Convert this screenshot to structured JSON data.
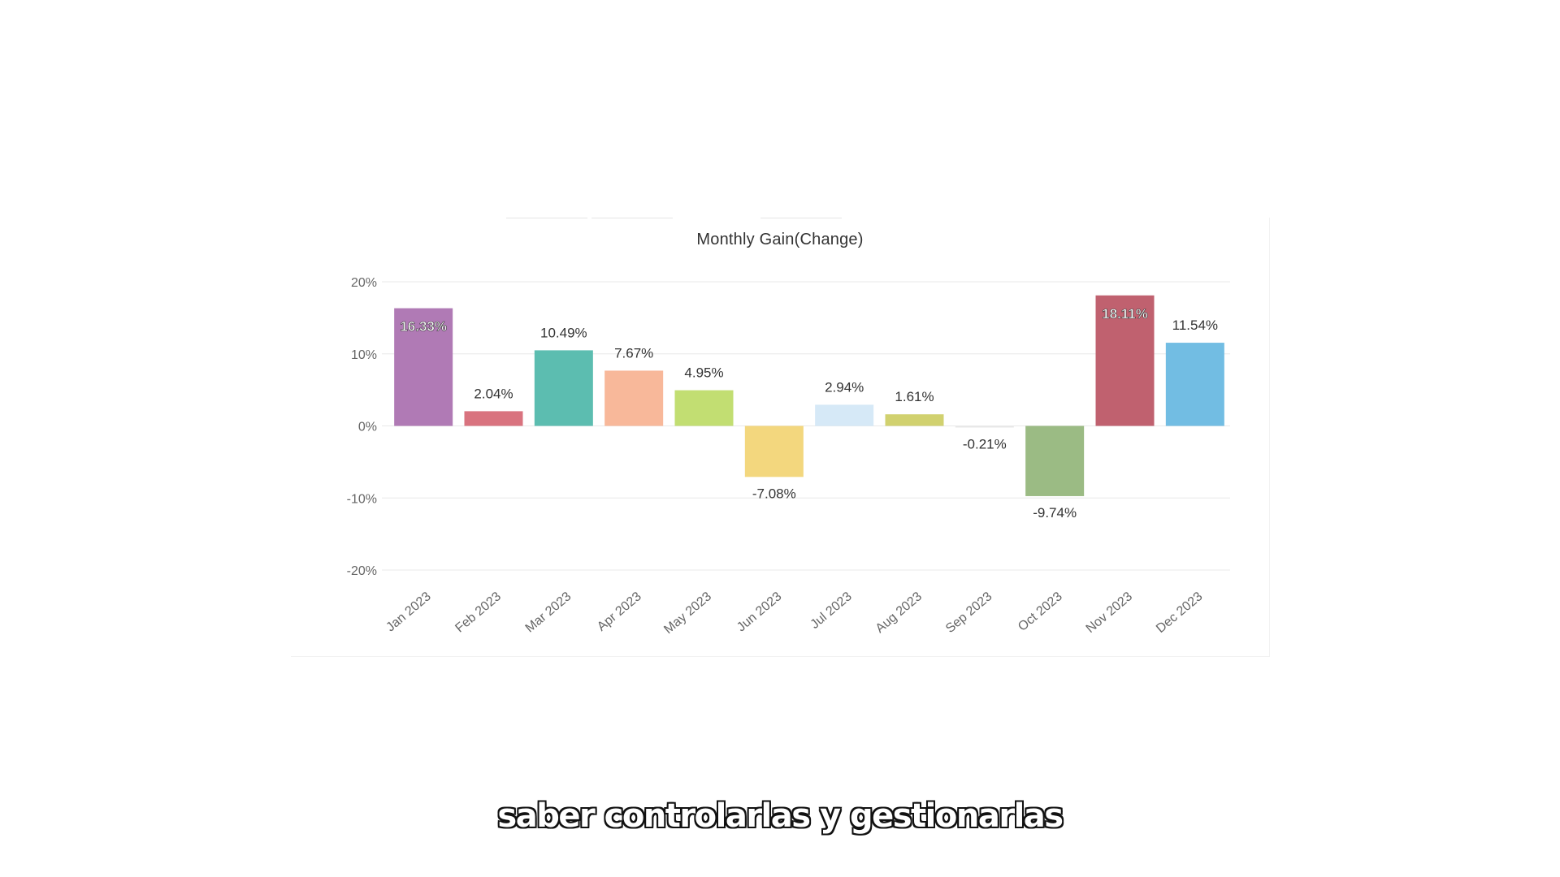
{
  "caption": "saber controlarlas y gestionarlas",
  "colors": {
    "grid": "#e8e8e8",
    "axis_text": "#666666",
    "label_text": "#333333"
  },
  "chart_data": {
    "type": "bar",
    "title": "Monthly Gain(Change)",
    "xlabel": "",
    "ylabel": "",
    "ylim": [
      -20,
      20
    ],
    "yticks": [
      20,
      10,
      0,
      -10,
      -20
    ],
    "ytick_labels": [
      "20%",
      "10%",
      "0%",
      "-10%",
      "-20%"
    ],
    "grid": true,
    "categories": [
      "Jan 2023",
      "Feb 2023",
      "Mar 2023",
      "Apr 2023",
      "May 2023",
      "Jun 2023",
      "Jul 2023",
      "Aug 2023",
      "Sep 2023",
      "Oct 2023",
      "Nov 2023",
      "Dec 2023"
    ],
    "values": [
      16.33,
      2.04,
      10.49,
      7.67,
      4.95,
      -7.08,
      2.94,
      1.61,
      -0.21,
      -9.74,
      18.11,
      11.54
    ],
    "labels": [
      "16.33%",
      "2.04%",
      "10.49%",
      "7.67%",
      "4.95%",
      "-7.08%",
      "2.94%",
      "1.61%",
      "-0.21%",
      "-9.74%",
      "18.11%",
      "11.54%"
    ],
    "colors": [
      "#b07ab5",
      "#d9737f",
      "#5cbdb0",
      "#f8b89a",
      "#c2de72",
      "#f3d77e",
      "#d6e9f7",
      "#d1d16f",
      "#e8e8e8",
      "#9bbb84",
      "#c0616f",
      "#72bde3"
    ]
  }
}
